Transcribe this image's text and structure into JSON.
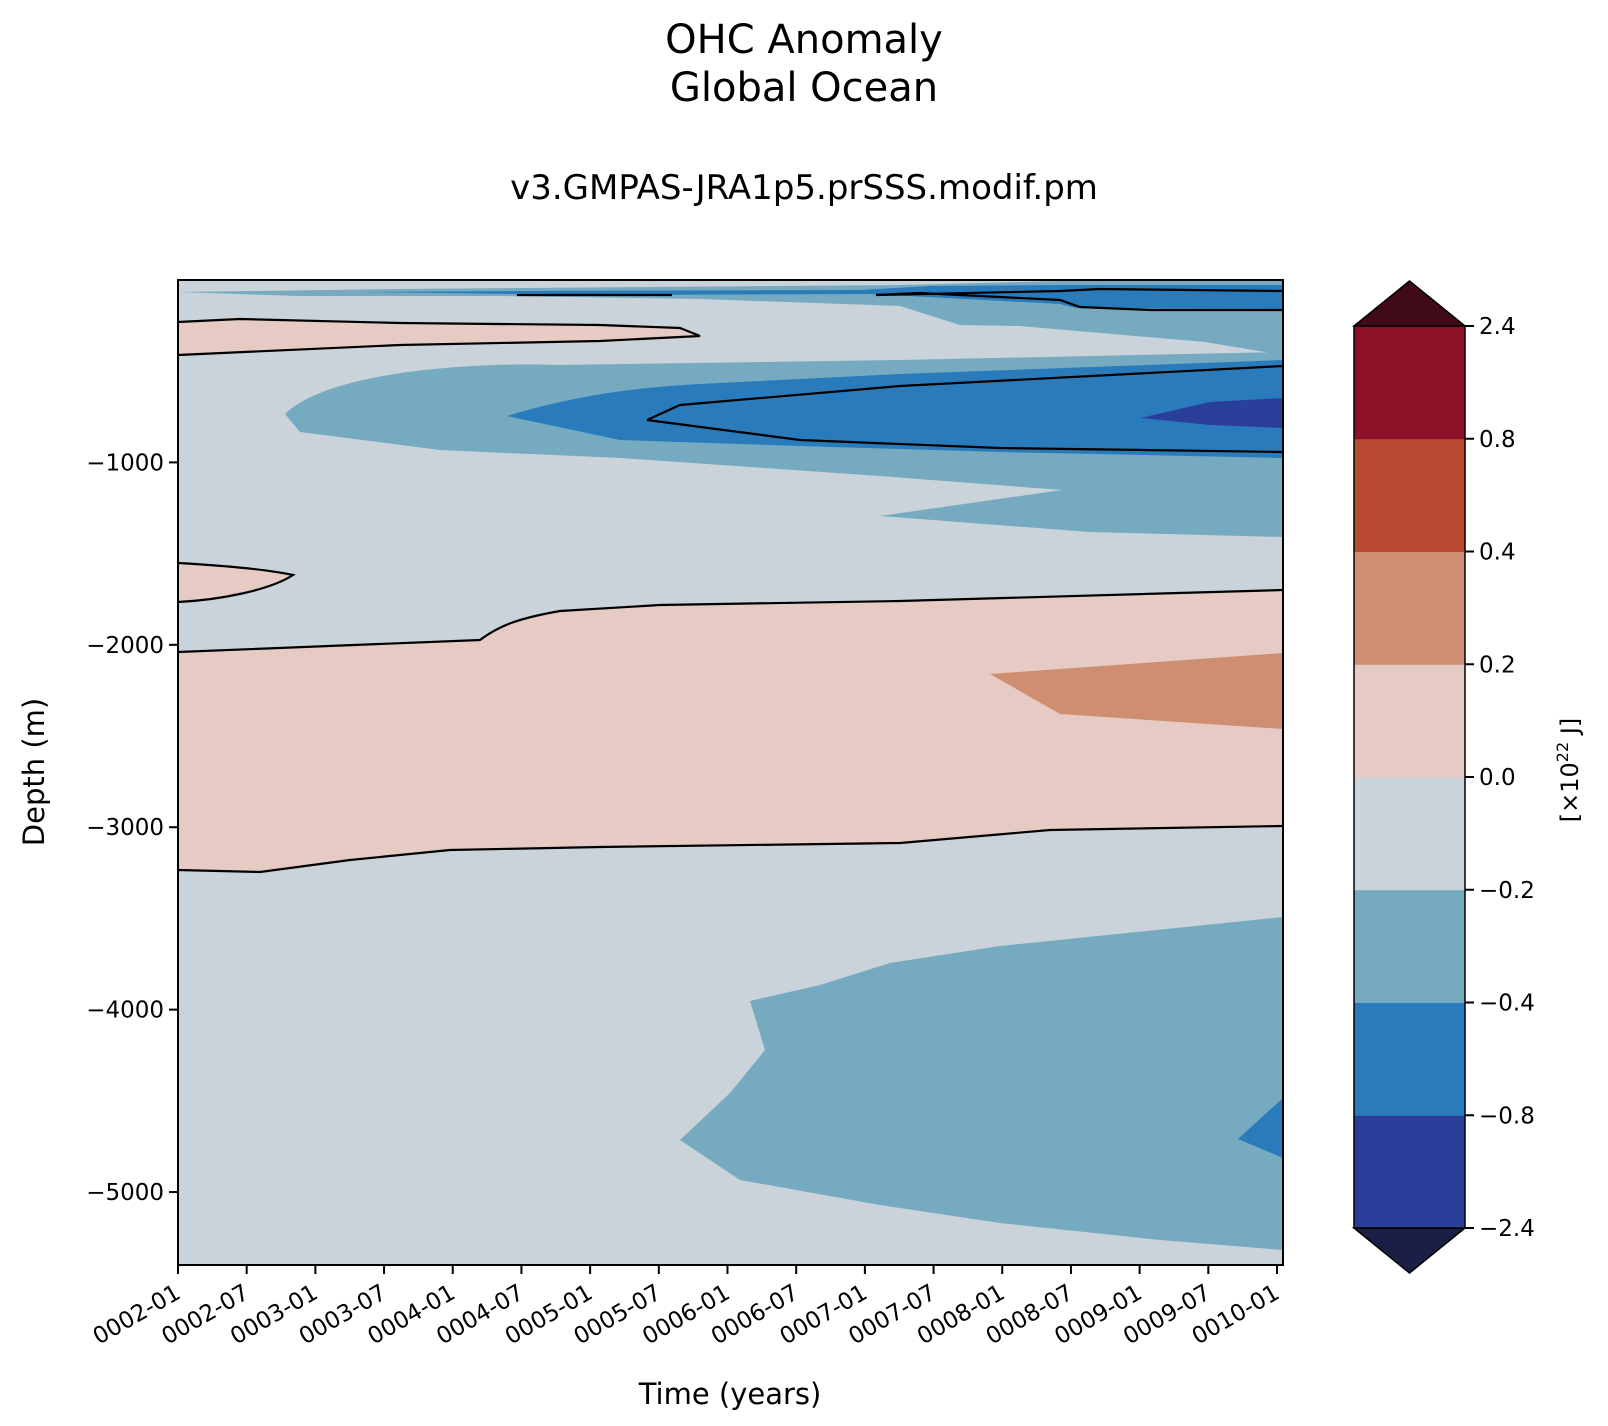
{
  "title": "OHC Anomaly",
  "subtitle_region": "Global Ocean",
  "run_name": "v3.GMPAS-JRA1p5.prSSS.modif.pm",
  "chart_data": {
    "type": "contourf",
    "xlabel": "Time (years)",
    "ylabel": "Depth (m)",
    "xlim": [
      "0002-01",
      "0010-01"
    ],
    "ylim": [
      -5400,
      0
    ],
    "x_ticks": [
      "0002-01",
      "0002-07",
      "0003-01",
      "0003-07",
      "0004-01",
      "0004-07",
      "0005-01",
      "0005-07",
      "0006-01",
      "0006-07",
      "0007-01",
      "0007-07",
      "0008-01",
      "0008-07",
      "0009-01",
      "0009-07",
      "0010-01"
    ],
    "y_ticks": [
      -1000,
      -2000,
      -3000,
      -4000,
      -5000
    ],
    "y_tick_labels": [
      "−1000",
      "−2000",
      "−3000",
      "−4000",
      "−5000"
    ],
    "colorbar": {
      "label_prefix": "[×10",
      "label_exp": "22",
      "label_suffix": " J]",
      "levels": [
        -2.4,
        -0.8,
        -0.4,
        -0.2,
        0.0,
        0.2,
        0.4,
        0.8,
        2.4
      ],
      "tick_labels": [
        "−2.4",
        "−0.8",
        "−0.4",
        "−0.2",
        "0.0",
        "0.2",
        "0.4",
        "0.8",
        "2.4"
      ],
      "colors": [
        "#2a3f9a",
        "#2a7bbb",
        "#75aac0",
        "#c9d3d9",
        "#e5cbc4",
        "#cf8d72",
        "#b74a30",
        "#8a1127"
      ],
      "under_color": "#1c1f45",
      "over_color": "#3f0b17",
      "extend": "both"
    },
    "background_level_color": "#c9d3d9",
    "contour_line_color": "#000000",
    "contour_line_levels": [
      -0.8,
      0.0
    ]
  }
}
